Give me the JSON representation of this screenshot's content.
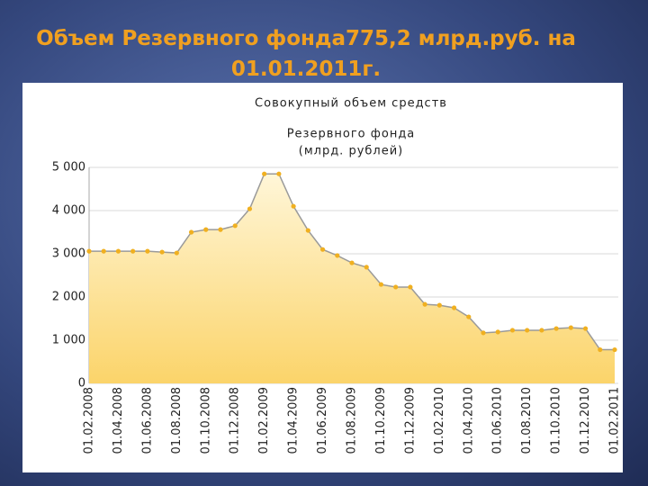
{
  "slide": {
    "title": "Объем Резервного фонда775,2 млрд.руб. на 01.01.2011г."
  },
  "chart_data": {
    "type": "area",
    "title": [
      "Совокупный объем средств",
      "Резервного фонда",
      "(млрд. рублей)"
    ],
    "categories": [
      "01.02.2008",
      null,
      "01.04.2008",
      null,
      "01.06.2008",
      null,
      "01.08.2008",
      null,
      "01.10.2008",
      null,
      "01.12.2008",
      null,
      "01.02.2009",
      null,
      "01.04.2009",
      null,
      "01.06.2009",
      null,
      "01.08.2009",
      null,
      "01.10.2009",
      null,
      "01.12.2009",
      null,
      "01.02.2010",
      null,
      "01.04.2010",
      null,
      "01.06.2010",
      null,
      "01.08.2010",
      null,
      "01.10.2010",
      null,
      "01.12.2010",
      null,
      "01.02.2011"
    ],
    "values": [
      3060,
      3060,
      3060,
      3060,
      3060,
      3040,
      3020,
      3500,
      3560,
      3560,
      3650,
      4040,
      4850,
      4850,
      4100,
      3540,
      3100,
      2960,
      2790,
      2690,
      2290,
      2230,
      2230,
      1830,
      1810,
      1750,
      1540,
      1170,
      1190,
      1230,
      1230,
      1230,
      1270,
      1290,
      1270,
      780,
      780
    ],
    "color": "#f0b020",
    "line_color": "#9a9a9a",
    "ylim": [
      0,
      5000
    ],
    "yticks": [
      0,
      {
        "value": 1000,
        "label": "1 000"
      },
      {
        "value": 2000,
        "label": "2 000"
      },
      {
        "value": 3000,
        "label": "3 000"
      },
      {
        "value": 4000,
        "label": "4 000"
      },
      {
        "value": 5000,
        "label": "5 000"
      }
    ],
    "grid": true
  }
}
